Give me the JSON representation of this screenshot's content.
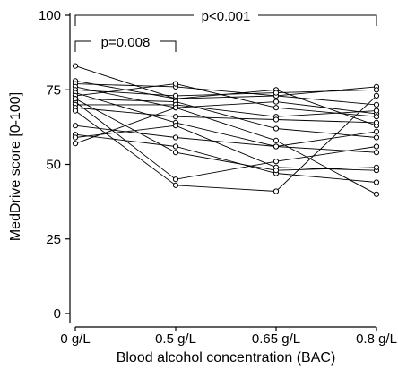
{
  "chart_data": {
    "type": "line",
    "xlabel": "Blood alcohol concentration (BAC)",
    "ylabel": "MedDrive score [0-100]",
    "categories": [
      "0 g/L",
      "0.5 g/L",
      "0.65 g/L",
      "0.8 g/L"
    ],
    "ylim": [
      0,
      100
    ],
    "yticks": [
      0,
      25,
      50,
      75,
      100
    ],
    "grid": false,
    "series": [
      {
        "values": [
          83,
          72,
          73,
          76
        ]
      },
      {
        "values": [
          78,
          72,
          75,
          63
        ]
      },
      {
        "values": [
          77,
          76,
          73,
          70
        ]
      },
      {
        "values": [
          76,
          69,
          71,
          67
        ]
      },
      {
        "values": [
          75,
          73,
          74,
          75
        ]
      },
      {
        "values": [
          74,
          64,
          56,
          61
        ]
      },
      {
        "values": [
          73,
          77,
          69,
          66
        ]
      },
      {
        "values": [
          72,
          71,
          62,
          59
        ]
      },
      {
        "values": [
          71,
          45,
          51,
          56
        ]
      },
      {
        "values": [
          70,
          70,
          66,
          68
        ]
      },
      {
        "values": [
          69,
          66,
          65,
          64
        ]
      },
      {
        "values": [
          68,
          43,
          41,
          73
        ]
      },
      {
        "values": [
          63,
          59,
          56,
          54
        ]
      },
      {
        "values": [
          60,
          56,
          47,
          44
        ]
      },
      {
        "values": [
          59,
          63,
          49,
          48
        ]
      },
      {
        "values": [
          57,
          69,
          58,
          40
        ]
      },
      {
        "values": [
          72,
          54,
          48,
          49
        ]
      }
    ],
    "annotations": [
      {
        "label": "p=0.008",
        "from": "0 g/L",
        "to": "0.5 g/L"
      },
      {
        "label": "p<0.001",
        "from": "0 g/L",
        "to": "0.8 g/L"
      }
    ]
  }
}
